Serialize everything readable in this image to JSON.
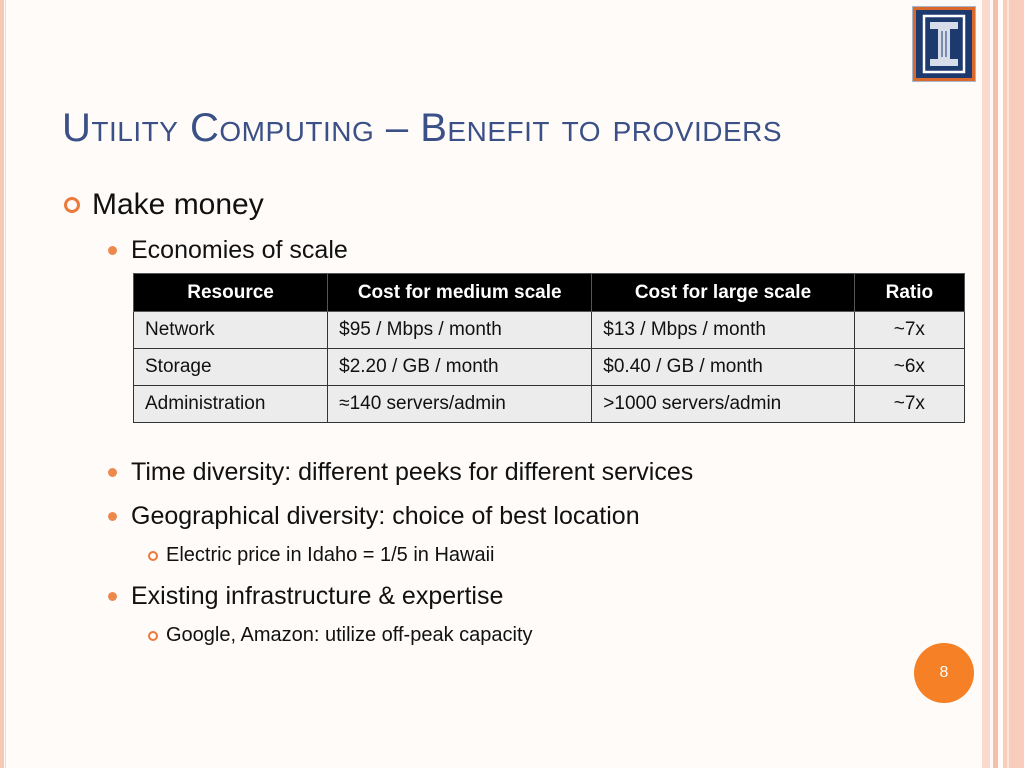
{
  "slide": {
    "title": "Utility Computing – Benefit to providers",
    "page_number": "8"
  },
  "logo": {
    "icon": "university-i-logo-icon"
  },
  "content": {
    "l1": "Make money",
    "l2_economies": "Economies of scale",
    "table": {
      "headers": [
        "Resource",
        "Cost for medium scale",
        "Cost for large scale",
        "Ratio"
      ],
      "rows": [
        [
          "Network",
          "$95 / Mbps / month",
          "$13 / Mbps / month",
          "~7x"
        ],
        [
          "Storage",
          "$2.20 / GB / month",
          "$0.40 / GB / month",
          "~6x"
        ],
        [
          "Administration",
          "≈140 servers/admin",
          ">1000 servers/admin",
          "~7x"
        ]
      ]
    },
    "l2_time": "Time diversity: different peeks for different services",
    "l2_geo": "Geographical diversity: choice of best location",
    "l3_electric": "Electric price in Idaho = 1/5 in Hawaii",
    "l2_existing": "Existing infrastructure & expertise",
    "l3_google": "Google, Amazon: utilize off-peak capacity"
  },
  "colors": {
    "title": "#3b5086",
    "accent": "#f58025",
    "table_header_bg": "#000000",
    "table_cell_bg": "#ececec"
  }
}
